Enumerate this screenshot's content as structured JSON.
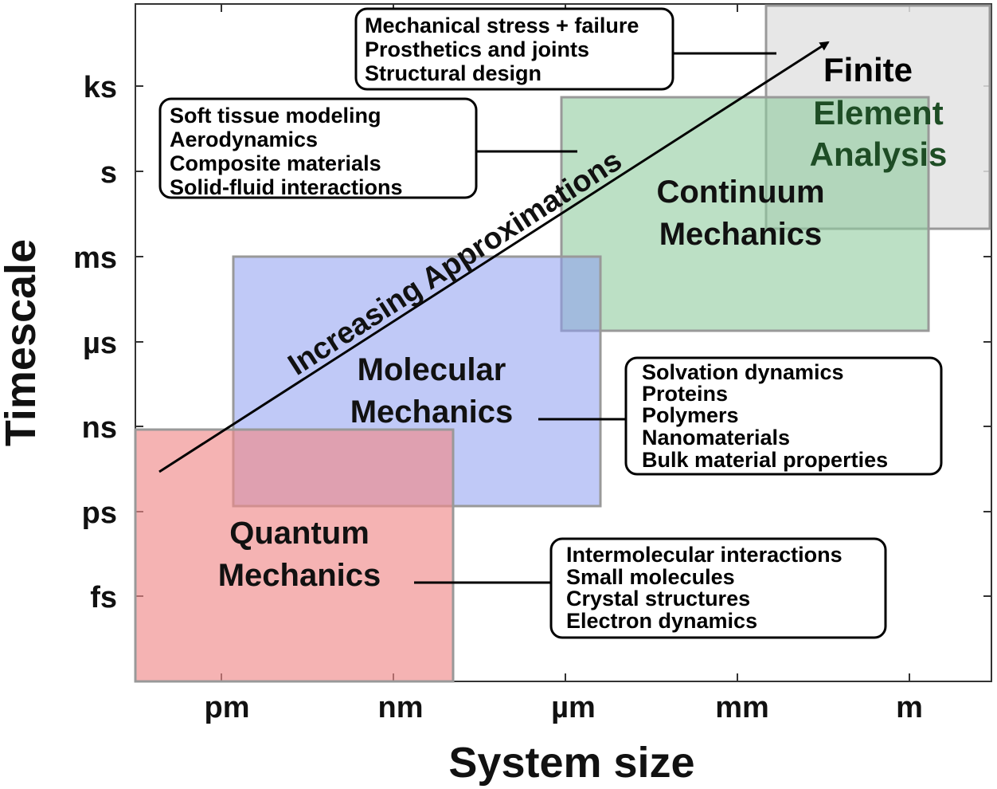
{
  "axes": {
    "x_title": "System size",
    "y_title": "Timescale",
    "x_ticks": [
      "pm",
      "nm",
      "µm",
      "mm",
      "m"
    ],
    "y_ticks": [
      "ks",
      "s",
      "ms",
      "µs",
      "ns",
      "ps",
      "fs"
    ]
  },
  "regions": {
    "quantum": {
      "line1": "Quantum",
      "line2": "Mechanics",
      "color": "#f4a6a6"
    },
    "molecular": {
      "line1": "Molecular",
      "line2": "Mechanics",
      "color": "#a9b4f0"
    },
    "continuum": {
      "line1": "Continuum",
      "line2": "Mechanics",
      "color": "#a8d5b3"
    },
    "fea": {
      "line1": "Finite",
      "line2": "Element",
      "line3": "Analysis",
      "color": "#e3e3e3",
      "text_color": "#1e4d25"
    }
  },
  "arrow": {
    "label": "Increasing Approximations"
  },
  "boxes": {
    "fea_apps": [
      "Mechanical stress + failure",
      "Prosthetics and joints",
      "Structural design"
    ],
    "continuum_apps": [
      "Soft tissue modeling",
      "Aerodynamics",
      "Composite materials",
      "Solid-fluid interactions"
    ],
    "molecular_apps": [
      "Solvation dynamics",
      "Proteins",
      "Polymers",
      "Nanomaterials",
      "Bulk material properties"
    ],
    "quantum_apps": [
      "Intermolecular interactions",
      "Small molecules",
      "Crystal structures",
      "Electron dynamics"
    ]
  }
}
